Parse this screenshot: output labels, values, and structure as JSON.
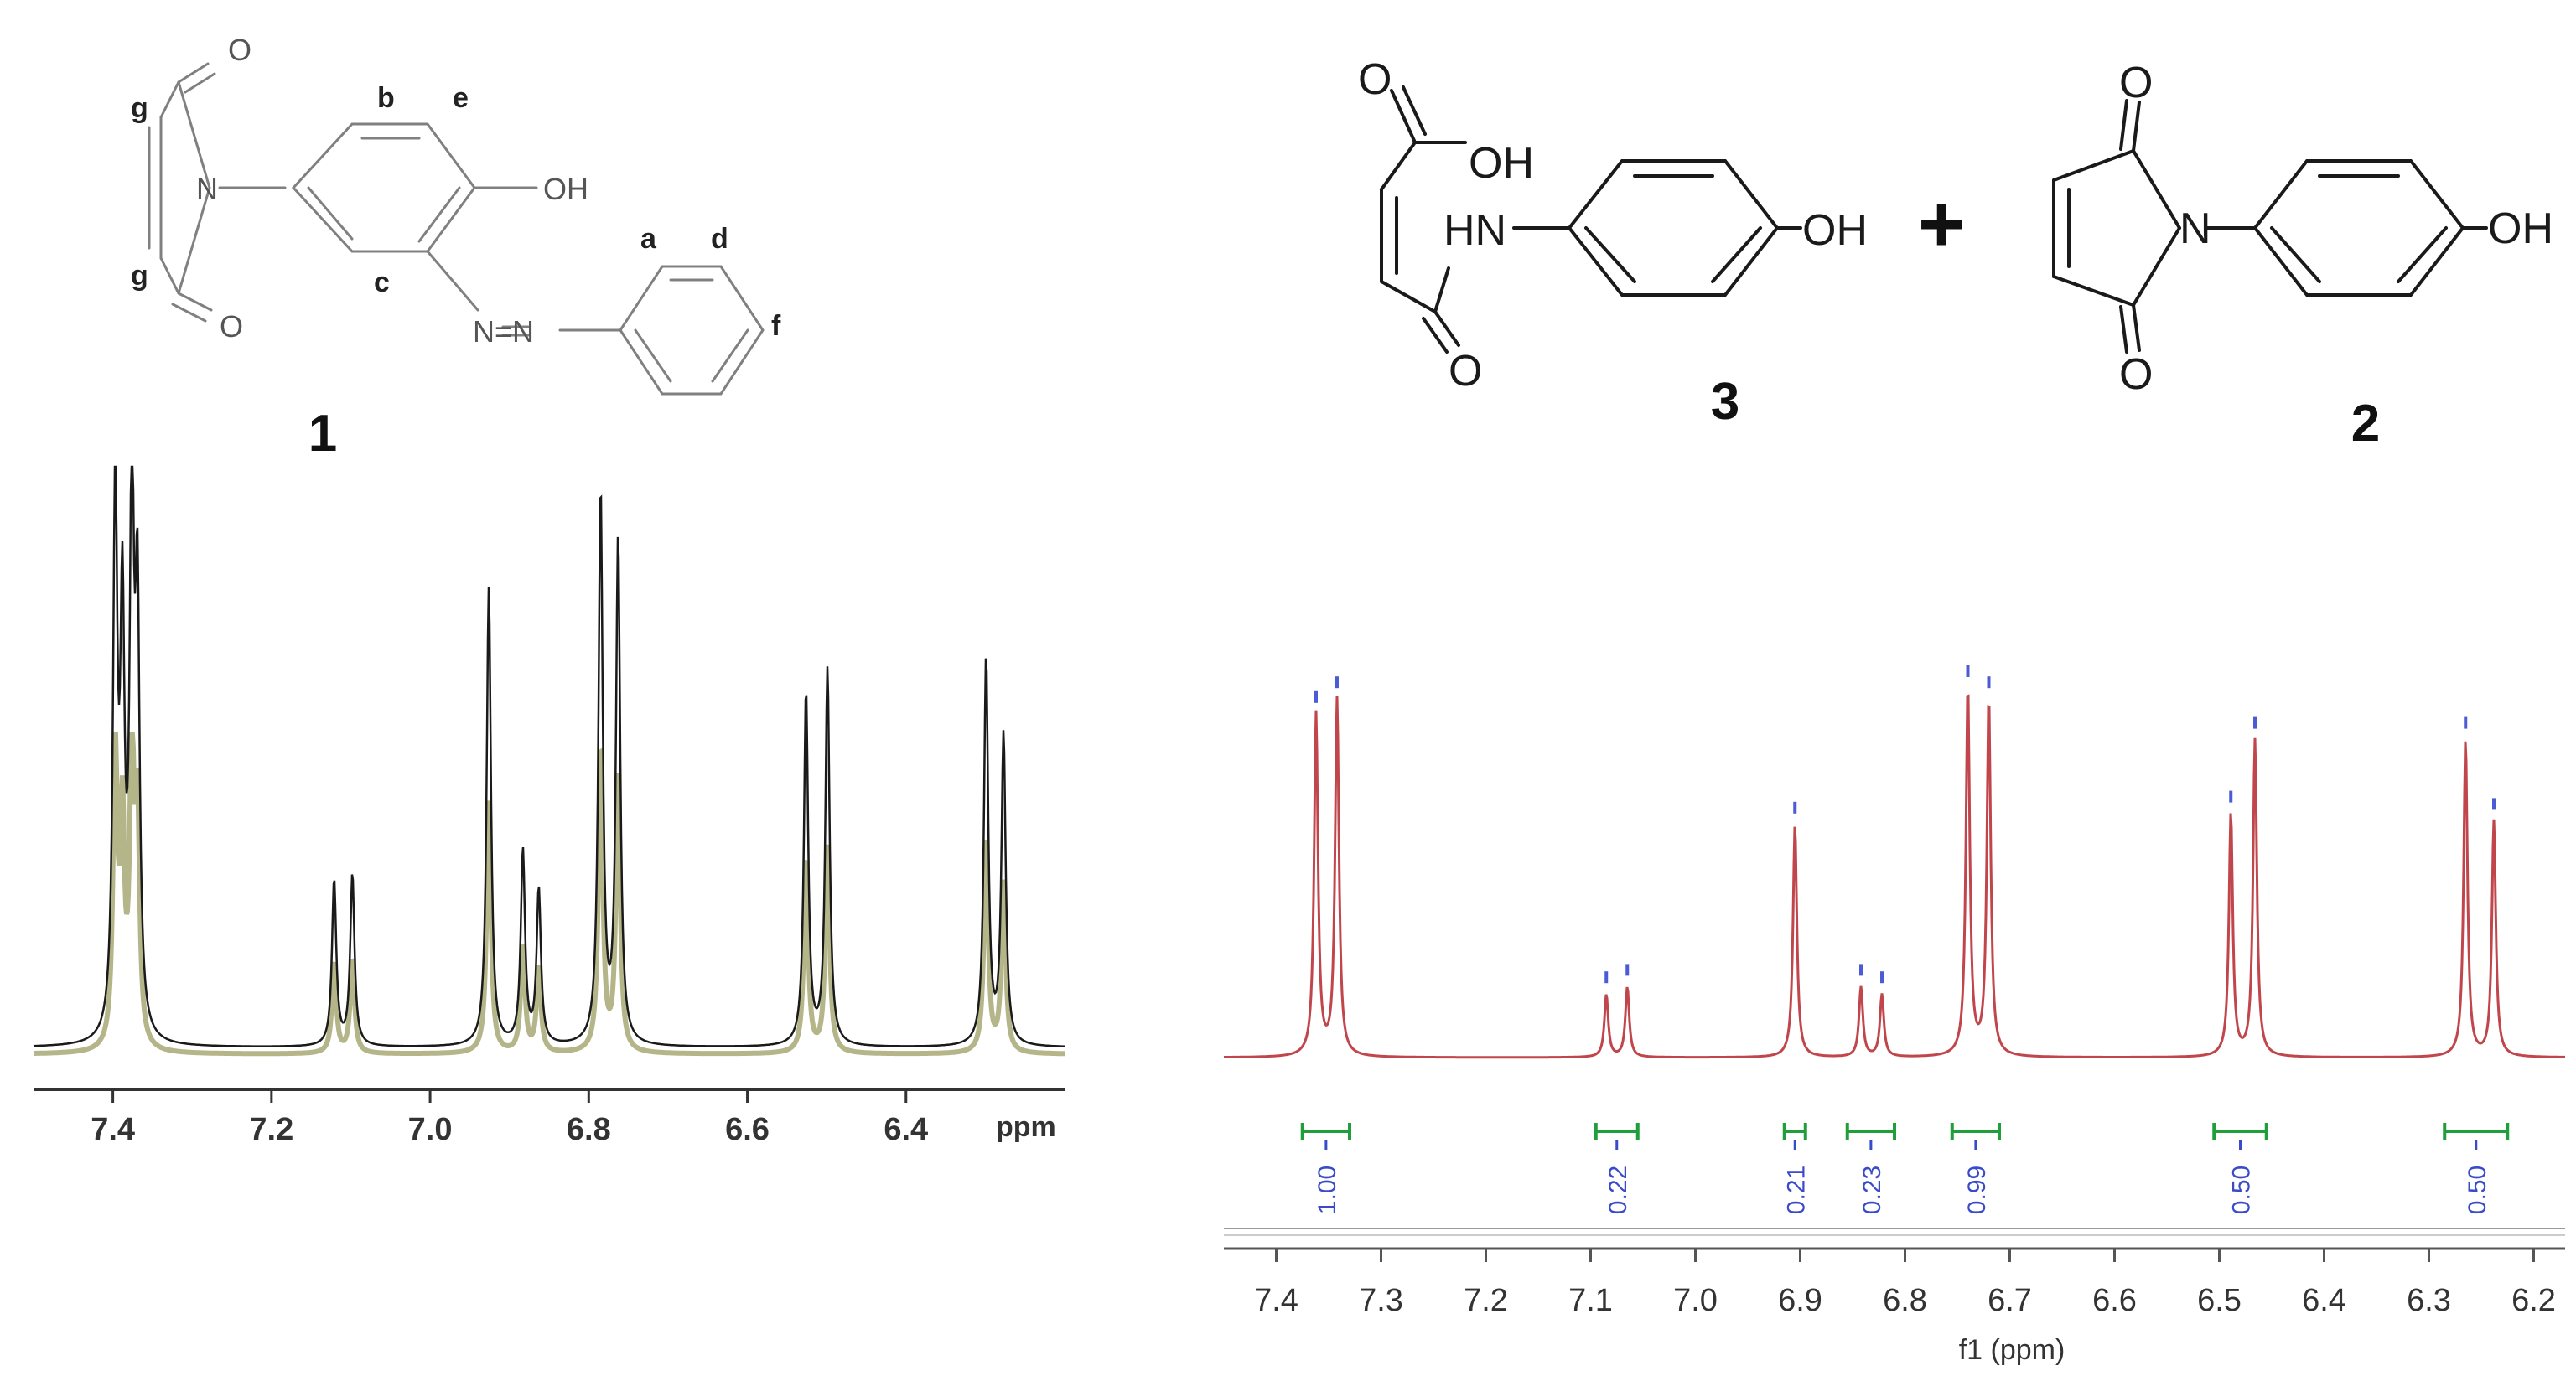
{
  "molecules": {
    "m1": {
      "number": "1",
      "atoms": {
        "O_top": "O",
        "O_bottom": "O",
        "N": "N",
        "OH": "OH",
        "azo": "N=N"
      },
      "labels": {
        "g1": "g",
        "g2": "g",
        "b": "b",
        "e": "e",
        "c": "c",
        "a": "a",
        "d": "d",
        "f": "f"
      }
    },
    "m3": {
      "number": "3",
      "atoms": {
        "O_acid": "O",
        "OH_acid": "OH",
        "HN": "HN",
        "OH": "OH",
        "O_amide": "O"
      }
    },
    "plus": "+",
    "m2": {
      "number": "2",
      "atoms": {
        "O_top": "O",
        "N": "N",
        "OH": "OH",
        "O_bottom": "O"
      }
    }
  },
  "chart_data": [
    {
      "type": "line",
      "subtype": "nmr-spectrum",
      "color": "#1a1a1a",
      "overlay_color": "#b5b58a",
      "xlabel": "ppm",
      "xlim": [
        7.5,
        6.2
      ],
      "x_reversed": true,
      "ticks": [
        7.4,
        7.2,
        7.0,
        6.8,
        6.6,
        6.4
      ],
      "tick_labels": [
        "7.4",
        "7.2",
        "7.0",
        "6.8",
        "6.6",
        "6.4"
      ],
      "peaks": [
        {
          "x": 7.397,
          "h": 0.99
        },
        {
          "x": 7.388,
          "h": 0.72
        },
        {
          "x": 7.376,
          "h": 0.98
        },
        {
          "x": 7.369,
          "h": 0.74
        },
        {
          "x": 7.121,
          "h": 0.3
        },
        {
          "x": 7.098,
          "h": 0.31
        },
        {
          "x": 6.926,
          "h": 0.83
        },
        {
          "x": 6.883,
          "h": 0.35
        },
        {
          "x": 6.863,
          "h": 0.28
        },
        {
          "x": 6.785,
          "h": 1.0
        },
        {
          "x": 6.763,
          "h": 0.91
        },
        {
          "x": 6.526,
          "h": 0.64
        },
        {
          "x": 6.499,
          "h": 0.68
        },
        {
          "x": 6.299,
          "h": 0.7
        },
        {
          "x": 6.277,
          "h": 0.56
        }
      ],
      "linewidth_ppm": 0.0032
    },
    {
      "type": "line",
      "subtype": "nmr-spectrum",
      "color": "#c0464c",
      "peak_marker_color": "#4b5bd6",
      "integral_color": "#1f9e3a",
      "integral_label_color": "#3a4bc9",
      "xlabel": "f1 (ppm)",
      "xlim": [
        7.45,
        6.17
      ],
      "x_reversed": true,
      "ticks": [
        7.4,
        7.3,
        7.2,
        7.1,
        7.0,
        6.9,
        6.8,
        6.7,
        6.6,
        6.5,
        6.4,
        6.3,
        6.2
      ],
      "tick_labels": [
        "7.4",
        "7.3",
        "7.2",
        "7.1",
        "7.0",
        "6.9",
        "6.8",
        "6.7",
        "6.6",
        "6.5",
        "6.4",
        "6.3",
        "6.2"
      ],
      "peaks": [
        {
          "x": 7.362,
          "h": 0.93
        },
        {
          "x": 7.342,
          "h": 0.97
        },
        {
          "x": 7.085,
          "h": 0.17
        },
        {
          "x": 7.065,
          "h": 0.19
        },
        {
          "x": 6.905,
          "h": 0.63
        },
        {
          "x": 6.842,
          "h": 0.19
        },
        {
          "x": 6.822,
          "h": 0.17
        },
        {
          "x": 6.74,
          "h": 1.0
        },
        {
          "x": 6.72,
          "h": 0.97
        },
        {
          "x": 6.489,
          "h": 0.66
        },
        {
          "x": 6.466,
          "h": 0.86
        },
        {
          "x": 6.265,
          "h": 0.86
        },
        {
          "x": 6.238,
          "h": 0.64
        }
      ],
      "linewidth_ppm": 0.0022,
      "integrals": [
        {
          "from": 7.375,
          "to": 7.33,
          "label": "1.00"
        },
        {
          "from": 7.095,
          "to": 7.055,
          "label": "0.22"
        },
        {
          "from": 6.915,
          "to": 6.895,
          "label": "0.21"
        },
        {
          "from": 6.855,
          "to": 6.81,
          "label": "0.23"
        },
        {
          "from": 6.755,
          "to": 6.71,
          "label": "0.99"
        },
        {
          "from": 6.505,
          "to": 6.455,
          "label": "0.50"
        },
        {
          "from": 6.285,
          "to": 6.225,
          "label": "0.50"
        }
      ]
    }
  ]
}
